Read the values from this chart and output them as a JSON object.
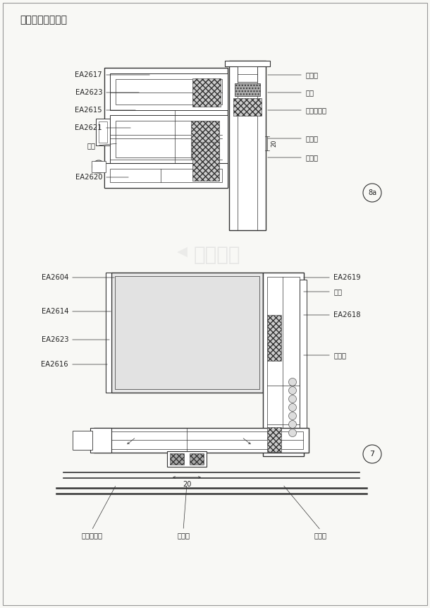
{
  "title": "部分节点图放大图",
  "bg_color": "#f8f8f5",
  "line_color": "#333333",
  "text_color": "#222222",
  "watermark": "土木在线",
  "circle_label_top": "8a",
  "circle_label_bot": "7",
  "dim_label": "20"
}
